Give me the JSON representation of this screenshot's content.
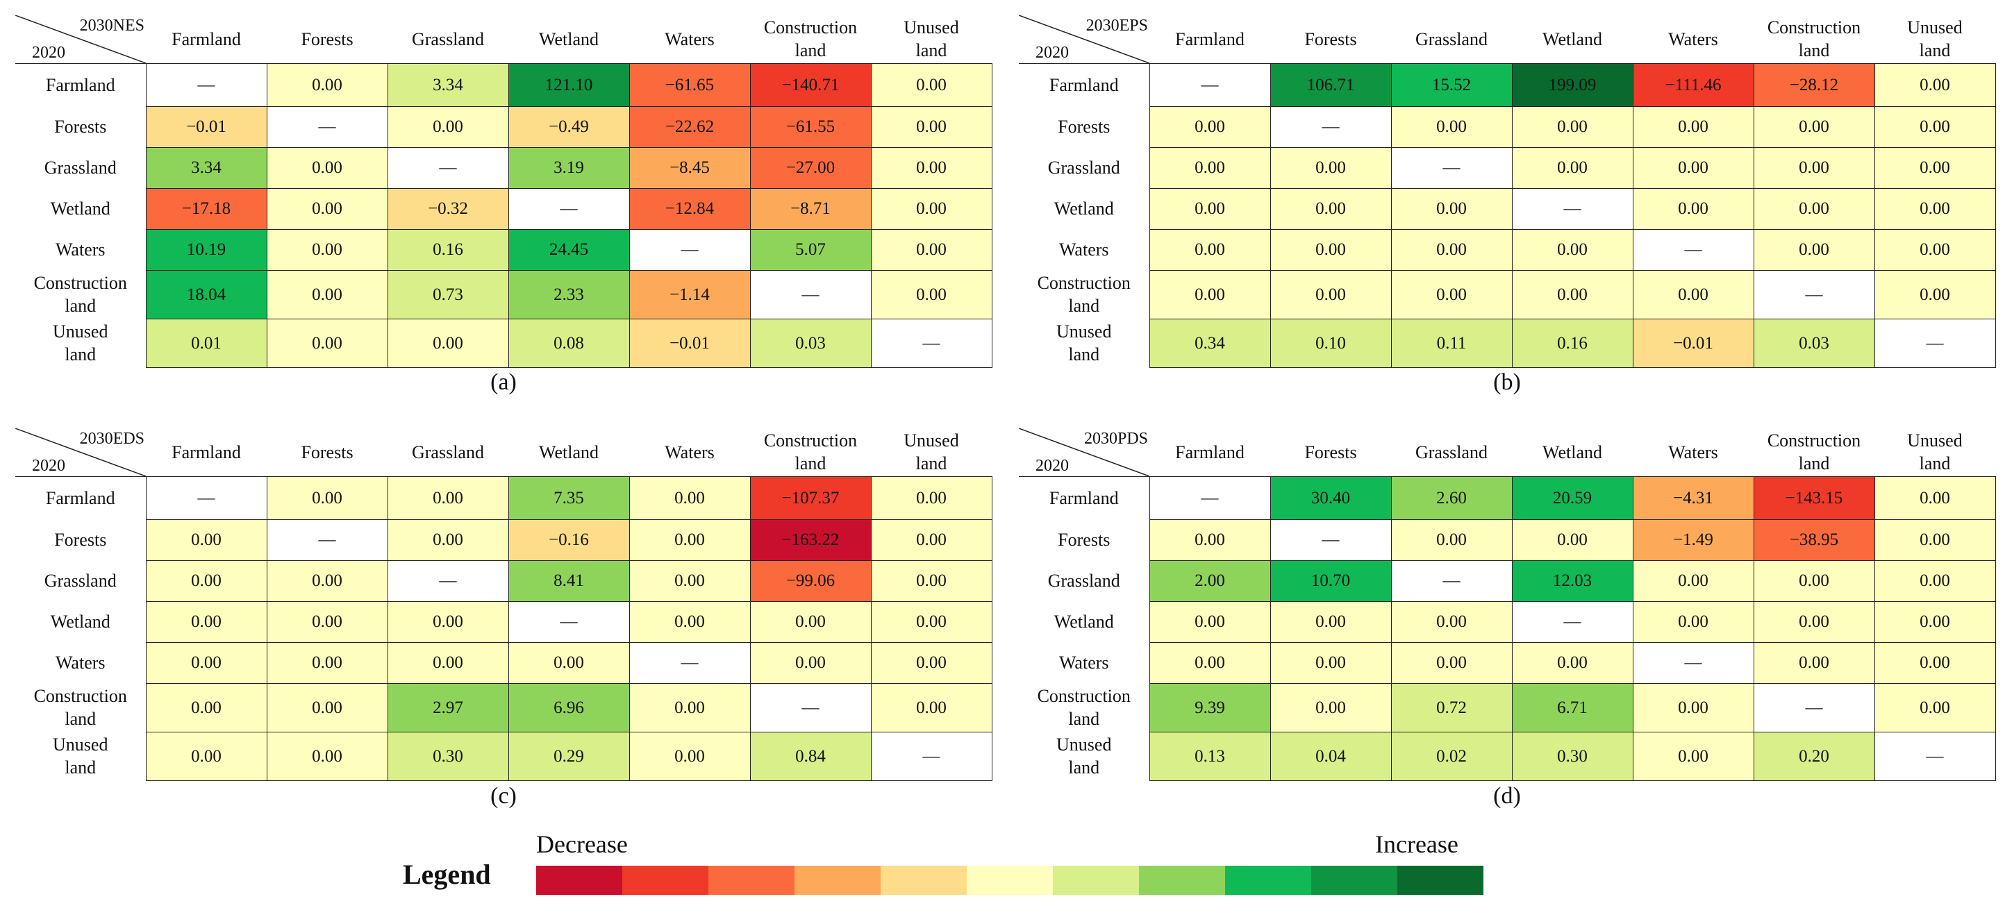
{
  "chart_data": {
    "type": "table",
    "row_header": "2020",
    "columns": [
      "Farmland",
      "Forests",
      "Grassland",
      "Wetland",
      "Waters",
      "Construction land",
      "Unused land"
    ],
    "rows": [
      "Farmland",
      "Forests",
      "Grassland",
      "Wetland",
      "Waters",
      "Construction land",
      "Unused land"
    ],
    "panels": [
      {
        "label": "(a)",
        "scenario": "2030NES",
        "values": [
          [
            "—",
            "0.00",
            "3.34",
            "121.10",
            "−61.65",
            "−140.71",
            "0.00"
          ],
          [
            "−0.01",
            "—",
            "0.00",
            "−0.49",
            "−22.62",
            "−61.55",
            "0.00"
          ],
          [
            "3.34",
            "0.00",
            "—",
            "3.19",
            "−8.45",
            "−27.00",
            "0.00"
          ],
          [
            "−17.18",
            "0.00",
            "−0.32",
            "—",
            "−12.84",
            "−8.71",
            "0.00"
          ],
          [
            "10.19",
            "0.00",
            "0.16",
            "24.45",
            "—",
            "5.07",
            "0.00"
          ],
          [
            "18.04",
            "0.00",
            "0.73",
            "2.33",
            "−1.14",
            "—",
            "0.00"
          ],
          [
            "0.01",
            "0.00",
            "0.00",
            "0.08",
            "−0.01",
            "0.03",
            "—"
          ]
        ],
        "levels": [
          [
            null,
            0,
            1,
            4,
            -3,
            -4,
            0
          ],
          [
            -1,
            null,
            0,
            -1,
            -3,
            -3,
            0
          ],
          [
            2,
            0,
            null,
            2,
            -2,
            -3,
            0
          ],
          [
            -3,
            0,
            -1,
            null,
            -3,
            -2,
            0
          ],
          [
            3,
            0,
            1,
            3,
            null,
            2,
            0
          ],
          [
            3,
            0,
            1,
            2,
            -2,
            null,
            0
          ],
          [
            1,
            0,
            0,
            1,
            -1,
            1,
            null
          ]
        ]
      },
      {
        "label": "(b)",
        "scenario": "2030EPS",
        "values": [
          [
            "—",
            "106.71",
            "15.52",
            "199.09",
            "−111.46",
            "−28.12",
            "0.00"
          ],
          [
            "0.00",
            "—",
            "0.00",
            "0.00",
            "0.00",
            "0.00",
            "0.00"
          ],
          [
            "0.00",
            "0.00",
            "—",
            "0.00",
            "0.00",
            "0.00",
            "0.00"
          ],
          [
            "0.00",
            "0.00",
            "0.00",
            "—",
            "0.00",
            "0.00",
            "0.00"
          ],
          [
            "0.00",
            "0.00",
            "0.00",
            "0.00",
            "—",
            "0.00",
            "0.00"
          ],
          [
            "0.00",
            "0.00",
            "0.00",
            "0.00",
            "0.00",
            "—",
            "0.00"
          ],
          [
            "0.34",
            "0.10",
            "0.11",
            "0.16",
            "−0.01",
            "0.03",
            "—"
          ]
        ],
        "levels": [
          [
            null,
            4,
            3,
            5,
            -4,
            -3,
            0
          ],
          [
            0,
            null,
            0,
            0,
            0,
            0,
            0
          ],
          [
            0,
            0,
            null,
            0,
            0,
            0,
            0
          ],
          [
            0,
            0,
            0,
            null,
            0,
            0,
            0
          ],
          [
            0,
            0,
            0,
            0,
            null,
            0,
            0
          ],
          [
            0,
            0,
            0,
            0,
            0,
            null,
            0
          ],
          [
            1,
            1,
            1,
            1,
            -1,
            1,
            null
          ]
        ]
      },
      {
        "label": "(c)",
        "scenario": "2030EDS",
        "values": [
          [
            "—",
            "0.00",
            "0.00",
            "7.35",
            "0.00",
            "−107.37",
            "0.00"
          ],
          [
            "0.00",
            "—",
            "0.00",
            "−0.16",
            "0.00",
            "−163.22",
            "0.00"
          ],
          [
            "0.00",
            "0.00",
            "—",
            "8.41",
            "0.00",
            "−99.06",
            "0.00"
          ],
          [
            "0.00",
            "0.00",
            "0.00",
            "—",
            "0.00",
            "0.00",
            "0.00"
          ],
          [
            "0.00",
            "0.00",
            "0.00",
            "0.00",
            "—",
            "0.00",
            "0.00"
          ],
          [
            "0.00",
            "0.00",
            "2.97",
            "6.96",
            "0.00",
            "—",
            "0.00"
          ],
          [
            "0.00",
            "0.00",
            "0.30",
            "0.29",
            "0.00",
            "0.84",
            "—"
          ]
        ],
        "levels": [
          [
            null,
            0,
            0,
            2,
            0,
            -4,
            0
          ],
          [
            0,
            null,
            0,
            -1,
            0,
            -5,
            0
          ],
          [
            0,
            0,
            null,
            2,
            0,
            -3,
            0
          ],
          [
            0,
            0,
            0,
            null,
            0,
            0,
            0
          ],
          [
            0,
            0,
            0,
            0,
            null,
            0,
            0
          ],
          [
            0,
            0,
            2,
            2,
            0,
            null,
            0
          ],
          [
            0,
            0,
            1,
            1,
            0,
            1,
            null
          ]
        ]
      },
      {
        "label": "(d)",
        "scenario": "2030PDS",
        "values": [
          [
            "—",
            "30.40",
            "2.60",
            "20.59",
            "−4.31",
            "−143.15",
            "0.00"
          ],
          [
            "0.00",
            "—",
            "0.00",
            "0.00",
            "−1.49",
            "−38.95",
            "0.00"
          ],
          [
            "2.00",
            "10.70",
            "—",
            "12.03",
            "0.00",
            "0.00",
            "0.00"
          ],
          [
            "0.00",
            "0.00",
            "0.00",
            "—",
            "0.00",
            "0.00",
            "0.00"
          ],
          [
            "0.00",
            "0.00",
            "0.00",
            "0.00",
            "—",
            "0.00",
            "0.00"
          ],
          [
            "9.39",
            "0.00",
            "0.72",
            "6.71",
            "0.00",
            "—",
            "0.00"
          ],
          [
            "0.13",
            "0.04",
            "0.02",
            "0.30",
            "0.00",
            "0.20",
            "—"
          ]
        ],
        "levels": [
          [
            null,
            3,
            2,
            3,
            -2,
            -4,
            0
          ],
          [
            0,
            null,
            0,
            0,
            -2,
            -3,
            0
          ],
          [
            2,
            3,
            null,
            3,
            0,
            0,
            0
          ],
          [
            0,
            0,
            0,
            null,
            0,
            0,
            0
          ],
          [
            0,
            0,
            0,
            0,
            null,
            0,
            0
          ],
          [
            2,
            0,
            1,
            2,
            0,
            null,
            0
          ],
          [
            1,
            1,
            1,
            1,
            0,
            1,
            null
          ]
        ]
      }
    ],
    "legend": {
      "title": "Legend",
      "low_label": "Decrease",
      "high_label": "Increase",
      "colors": [
        "#c8102e",
        "#ef3a2a",
        "#fb6a3c",
        "#fcaa5a",
        "#fddc8a",
        "#fefebe",
        "#d8ef8a",
        "#8fd45a",
        "#10b955",
        "#0f9441",
        "#0a6a2e"
      ]
    },
    "level_colors": {
      "-5": "#c8102e",
      "-4": "#ef3a2a",
      "-3": "#fb6a3c",
      "-2": "#fcaa5a",
      "-1": "#fddc8a",
      "0": "#fefebe",
      "1": "#d8ef8a",
      "2": "#8fd45a",
      "3": "#10b955",
      "4": "#0f9441",
      "5": "#0a6a2e",
      "diag": "#ffffff"
    }
  }
}
